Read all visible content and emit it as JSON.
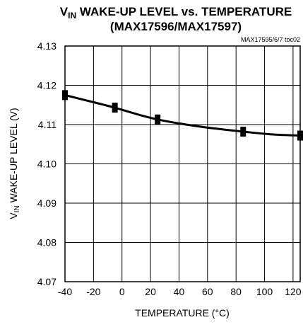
{
  "chart_data": {
    "type": "line",
    "title_parts": {
      "prefix": "V",
      "subscript": "IN",
      "suffix": " WAKE-UP LEVEL vs. TEMPERATURE"
    },
    "subtitle": "(MAX17596/MAX17597)",
    "reference": "MAX17595/6/7 toc02",
    "xlabel": "TEMPERATURE (°C)",
    "ylabel_parts": {
      "prefix": "V",
      "subscript": "IN",
      "suffix": " WAKE-UP LEVEL (V)"
    },
    "xlim": [
      -40,
      125
    ],
    "ylim": [
      4.07,
      4.13
    ],
    "x_ticks": [
      -40,
      -20,
      0,
      20,
      40,
      60,
      80,
      100,
      120
    ],
    "x_tick_labels": [
      "-40",
      "-20",
      "0",
      "20",
      "40",
      "60",
      "80",
      "100",
      "120"
    ],
    "y_ticks": [
      4.07,
      4.08,
      4.09,
      4.1,
      4.11,
      4.12,
      4.13
    ],
    "y_tick_labels": [
      "4.07",
      "4.08",
      "4.09",
      "4.10",
      "4.11",
      "4.12",
      "4.13"
    ],
    "grid": true,
    "series": [
      {
        "x": [
          -40,
          -20,
          -5,
          10,
          25,
          45,
          65,
          85,
          105,
          125
        ],
        "y": [
          4.1175,
          4.1157,
          4.1143,
          4.1127,
          4.1113,
          4.11,
          4.109,
          4.1082,
          4.1075,
          4.1072
        ]
      }
    ],
    "markers": {
      "x": [
        -40,
        -5,
        25,
        85,
        125
      ],
      "y": [
        4.1175,
        4.1143,
        4.1113,
        4.1082,
        4.1072
      ]
    },
    "color": "#000000"
  }
}
